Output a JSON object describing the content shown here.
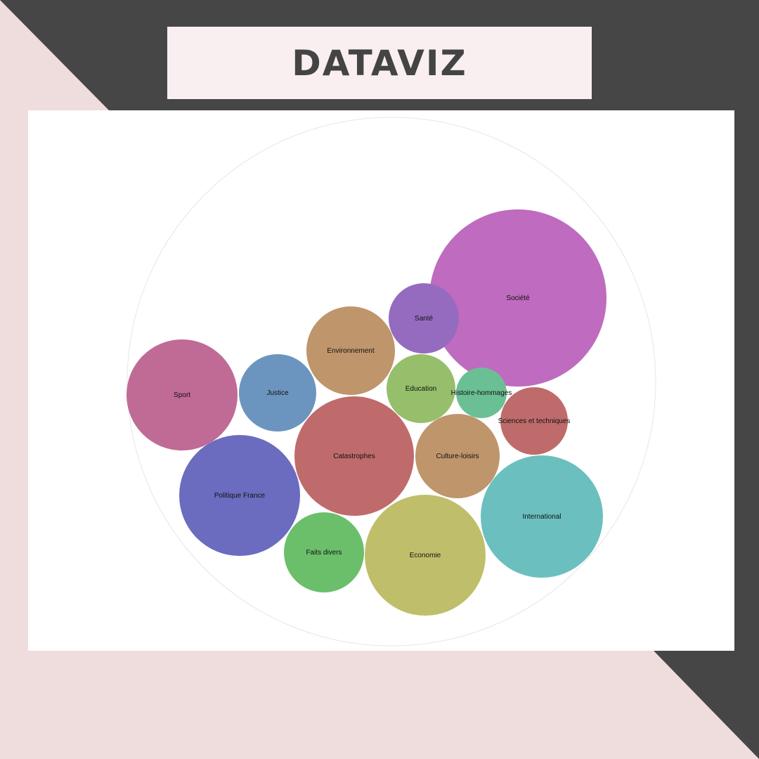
{
  "page": {
    "title": "DATAVIZ",
    "colors": {
      "background_pink": "#efdcdc",
      "background_dark": "#464646",
      "title_box": "#f9eff0",
      "title_text": "#444444",
      "panel": "#ffffff"
    }
  },
  "chart_data": {
    "type": "bubble",
    "title": "",
    "units": "relative size",
    "bubbles": [
      {
        "label": "Société",
        "value": 126,
        "color": "#bf6bbf"
      },
      {
        "label": "International",
        "value": 87,
        "color": "#6bbfbf"
      },
      {
        "label": "Economie",
        "value": 86,
        "color": "#bfbf6b"
      },
      {
        "label": "Catastrophes",
        "value": 85,
        "color": "#bf6b6b"
      },
      {
        "label": "Politique France",
        "value": 86,
        "color": "#6b6bbf"
      },
      {
        "label": "Sport",
        "value": 79,
        "color": "#bf6b95"
      },
      {
        "label": "Environnement",
        "value": 63,
        "color": "#bf956b"
      },
      {
        "label": "Culture-loisirs",
        "value": 60,
        "color": "#bf956b"
      },
      {
        "label": "Faits divers",
        "value": 57,
        "color": "#6bbf6b"
      },
      {
        "label": "Justice",
        "value": 55,
        "color": "#6b95bf"
      },
      {
        "label": "Santé",
        "value": 50,
        "color": "#956bbf"
      },
      {
        "label": "Education",
        "value": 49,
        "color": "#95bf6b"
      },
      {
        "label": "Sciences et techniques",
        "value": 48,
        "color": "#bf6b6b"
      },
      {
        "label": "Histoire-hommages",
        "value": 36,
        "color": "#6bbf95"
      }
    ]
  }
}
